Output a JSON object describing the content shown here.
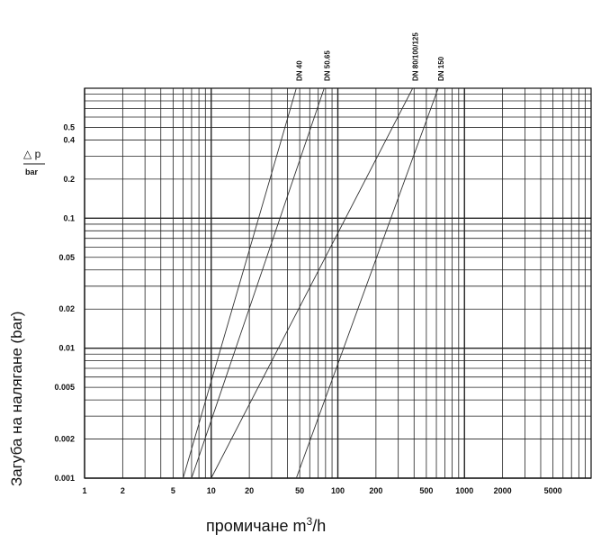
{
  "chart_data": {
    "type": "line",
    "xscale": "log",
    "yscale": "log",
    "xlim": [
      1,
      10000
    ],
    "ylim": [
      0.001,
      1
    ],
    "grid": true,
    "x_tick_labels": [
      "1",
      "2",
      "5",
      "10",
      "20",
      "50",
      "100",
      "200",
      "500",
      "1000",
      "2000",
      "5000"
    ],
    "y_tick_labels": [
      "0.001",
      "0.002",
      "0.005",
      "0.01",
      "0.02",
      "0.05",
      "0.1",
      "0.2",
      "0.4",
      "0.5"
    ],
    "xlabel_text": "промичане m",
    "xlabel_sup": "3",
    "xlabel_unit": "/h",
    "ylabel": "Загуба на налягане (bar)",
    "y_annotation_symbol": "△ p",
    "y_annotation_unit": "bar",
    "series": [
      {
        "name": "DN 40",
        "x": [
          6,
          47
        ],
        "y": [
          0.001,
          1
        ]
      },
      {
        "name": "DN 50.65",
        "x": [
          7,
          78
        ],
        "y": [
          0.001,
          1
        ]
      },
      {
        "name": "DN 80/100/125",
        "x": [
          10,
          390
        ],
        "y": [
          0.001,
          1
        ]
      },
      {
        "name": "DN 150",
        "x": [
          47,
          620
        ],
        "y": [
          0.001,
          1
        ]
      }
    ]
  }
}
